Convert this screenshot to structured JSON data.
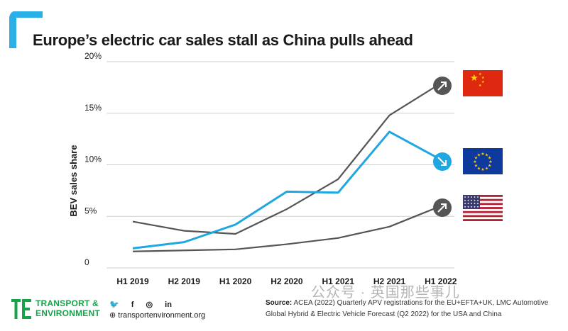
{
  "title": "Europe’s electric car sales stall as China pulls ahead",
  "chart_data": {
    "type": "line",
    "ylabel": "BEV sales share",
    "xlabel": "",
    "categories": [
      "H1 2019",
      "H2 2019",
      "H1 2020",
      "H2 2020",
      "H1 2021",
      "H2 2021",
      "H1 2022"
    ],
    "y_ticks": [
      "20%",
      "15%",
      "10%",
      "5%",
      "0"
    ],
    "ylim": [
      0,
      20
    ],
    "grid": true,
    "series": [
      {
        "values": [
          4.5,
          3.6,
          3.3,
          5.7,
          8.6,
          14.8,
          17.9
        ],
        "color": "#555555"
      },
      {
        "values": [
          1.9,
          2.5,
          4.2,
          7.4,
          7.3,
          13.2,
          10.5
        ],
        "color": "#1ea7e1"
      },
      {
        "values": [
          1.6,
          1.7,
          1.8,
          2.3,
          2.9,
          4.0,
          6.0
        ],
        "color": "#555555"
      }
    ],
    "flags": [
      "China",
      "EU",
      "USA"
    ]
  },
  "footer": {
    "brand_line1": "TRANSPORT &",
    "brand_line2": "ENVIRONMENT",
    "website": "transportenvironment.org",
    "source_label": "Source:",
    "source_text": "ACEA (2022) Quarterly APV registrations for the EU+EFTA+UK, LMC Automotive Global Hybrid & Electric Vehicle Forecast (Q2 2022) for the USA and China"
  },
  "watermark": "公众号 · 英国那些事儿",
  "colors": {
    "accent": "#1ea7e1",
    "grey_line": "#555555",
    "brand_green": "#17a34a"
  },
  "icons": [
    "arrow-up-right-icon",
    "arrow-down-right-icon",
    "china-flag-icon",
    "eu-flag-icon",
    "us-flag-icon",
    "twitter-icon",
    "facebook-icon",
    "instagram-icon",
    "linkedin-icon",
    "globe-icon"
  ]
}
